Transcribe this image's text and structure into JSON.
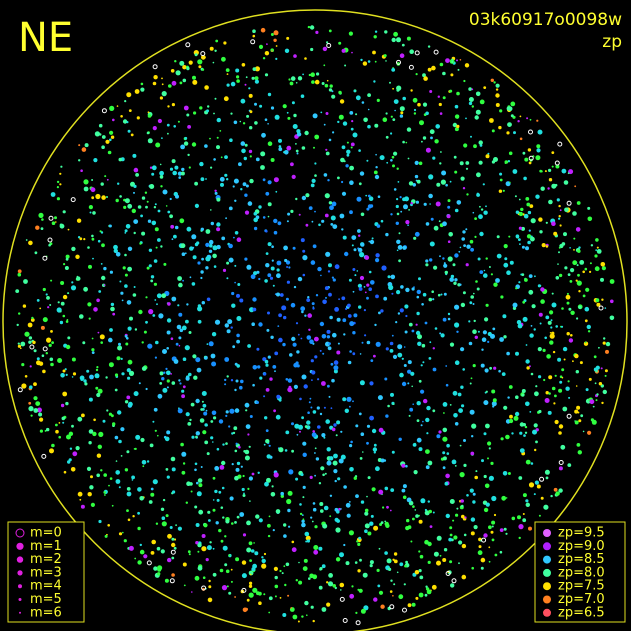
{
  "header": {
    "direction": "NE",
    "image_id": "03k60917o0098w",
    "mode": "zp"
  },
  "magnitude_legend": {
    "items": [
      "m=0",
      "m=1",
      "m=2",
      "m=3",
      "m=4",
      "m=5",
      "m=6"
    ],
    "color": "#e020e0"
  },
  "zp_legend": {
    "items": [
      {
        "label": "zp=9.5",
        "color": "#e060ff"
      },
      {
        "label": "zp=9.0",
        "color": "#b020ff"
      },
      {
        "label": "zp=8.5",
        "color": "#30c8ff"
      },
      {
        "label": "zp=8.0",
        "color": "#40ffa0"
      },
      {
        "label": "zp=7.5",
        "color": "#ffe000"
      },
      {
        "label": "zp=7.0",
        "color": "#ff8020"
      },
      {
        "label": "zp=6.5",
        "color": "#ff5060"
      }
    ]
  }
}
